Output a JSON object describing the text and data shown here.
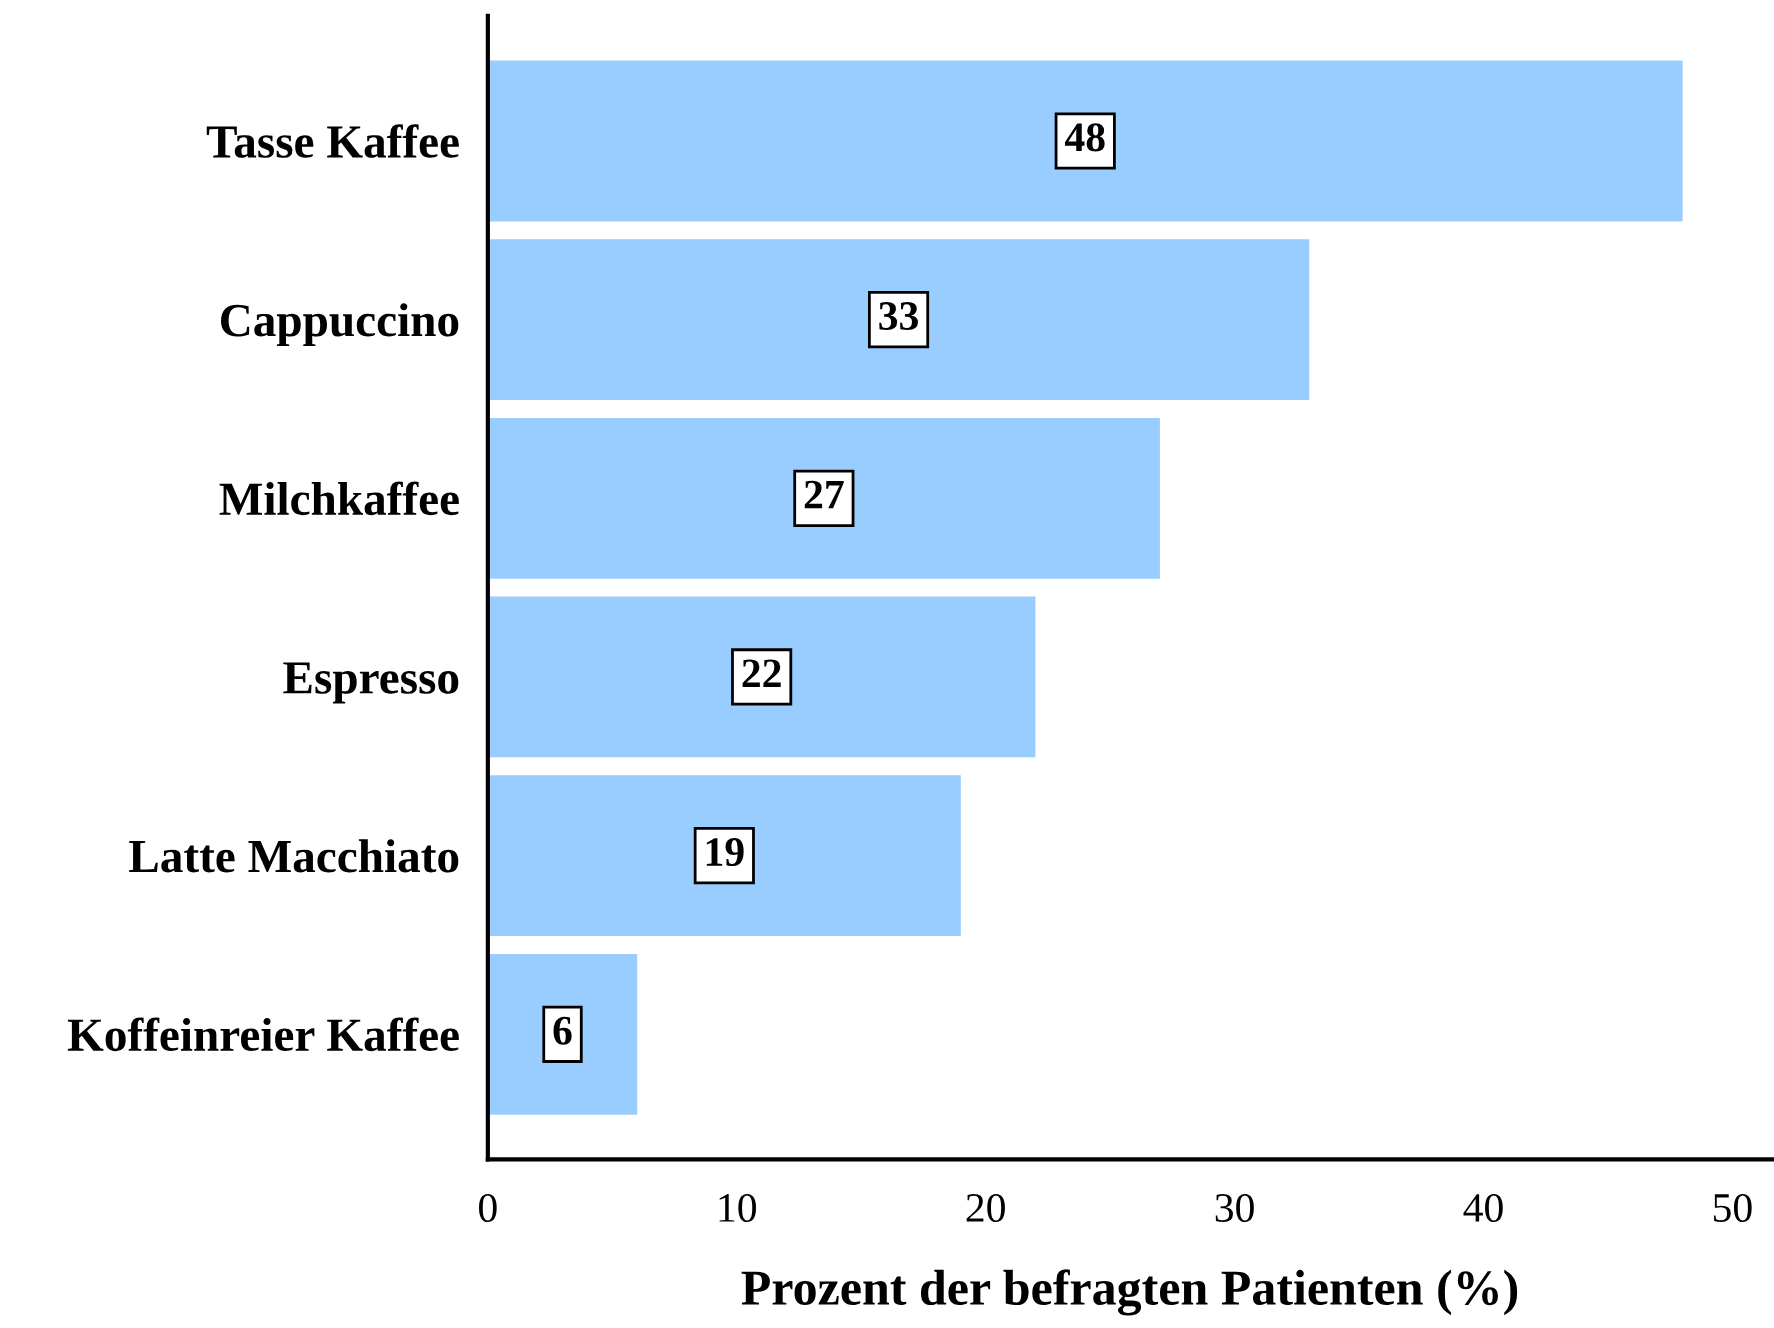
{
  "chart_data": {
    "type": "bar",
    "orientation": "horizontal",
    "xlabel": "Prozent der befragten Patienten (%)",
    "categories": [
      "Tasse Kaffee",
      "Cappuccino",
      "Milchkaffee",
      "Espresso",
      "Latte Macchiato",
      "Koffeinreier Kaffee"
    ],
    "values": [
      48,
      33,
      27,
      22,
      19,
      6
    ],
    "color": "#99ccff",
    "xlim": [
      0,
      51.6
    ],
    "xticks": [
      0,
      10,
      20,
      30,
      40,
      50
    ],
    "grid": false,
    "legend": false,
    "data_labels": true
  }
}
